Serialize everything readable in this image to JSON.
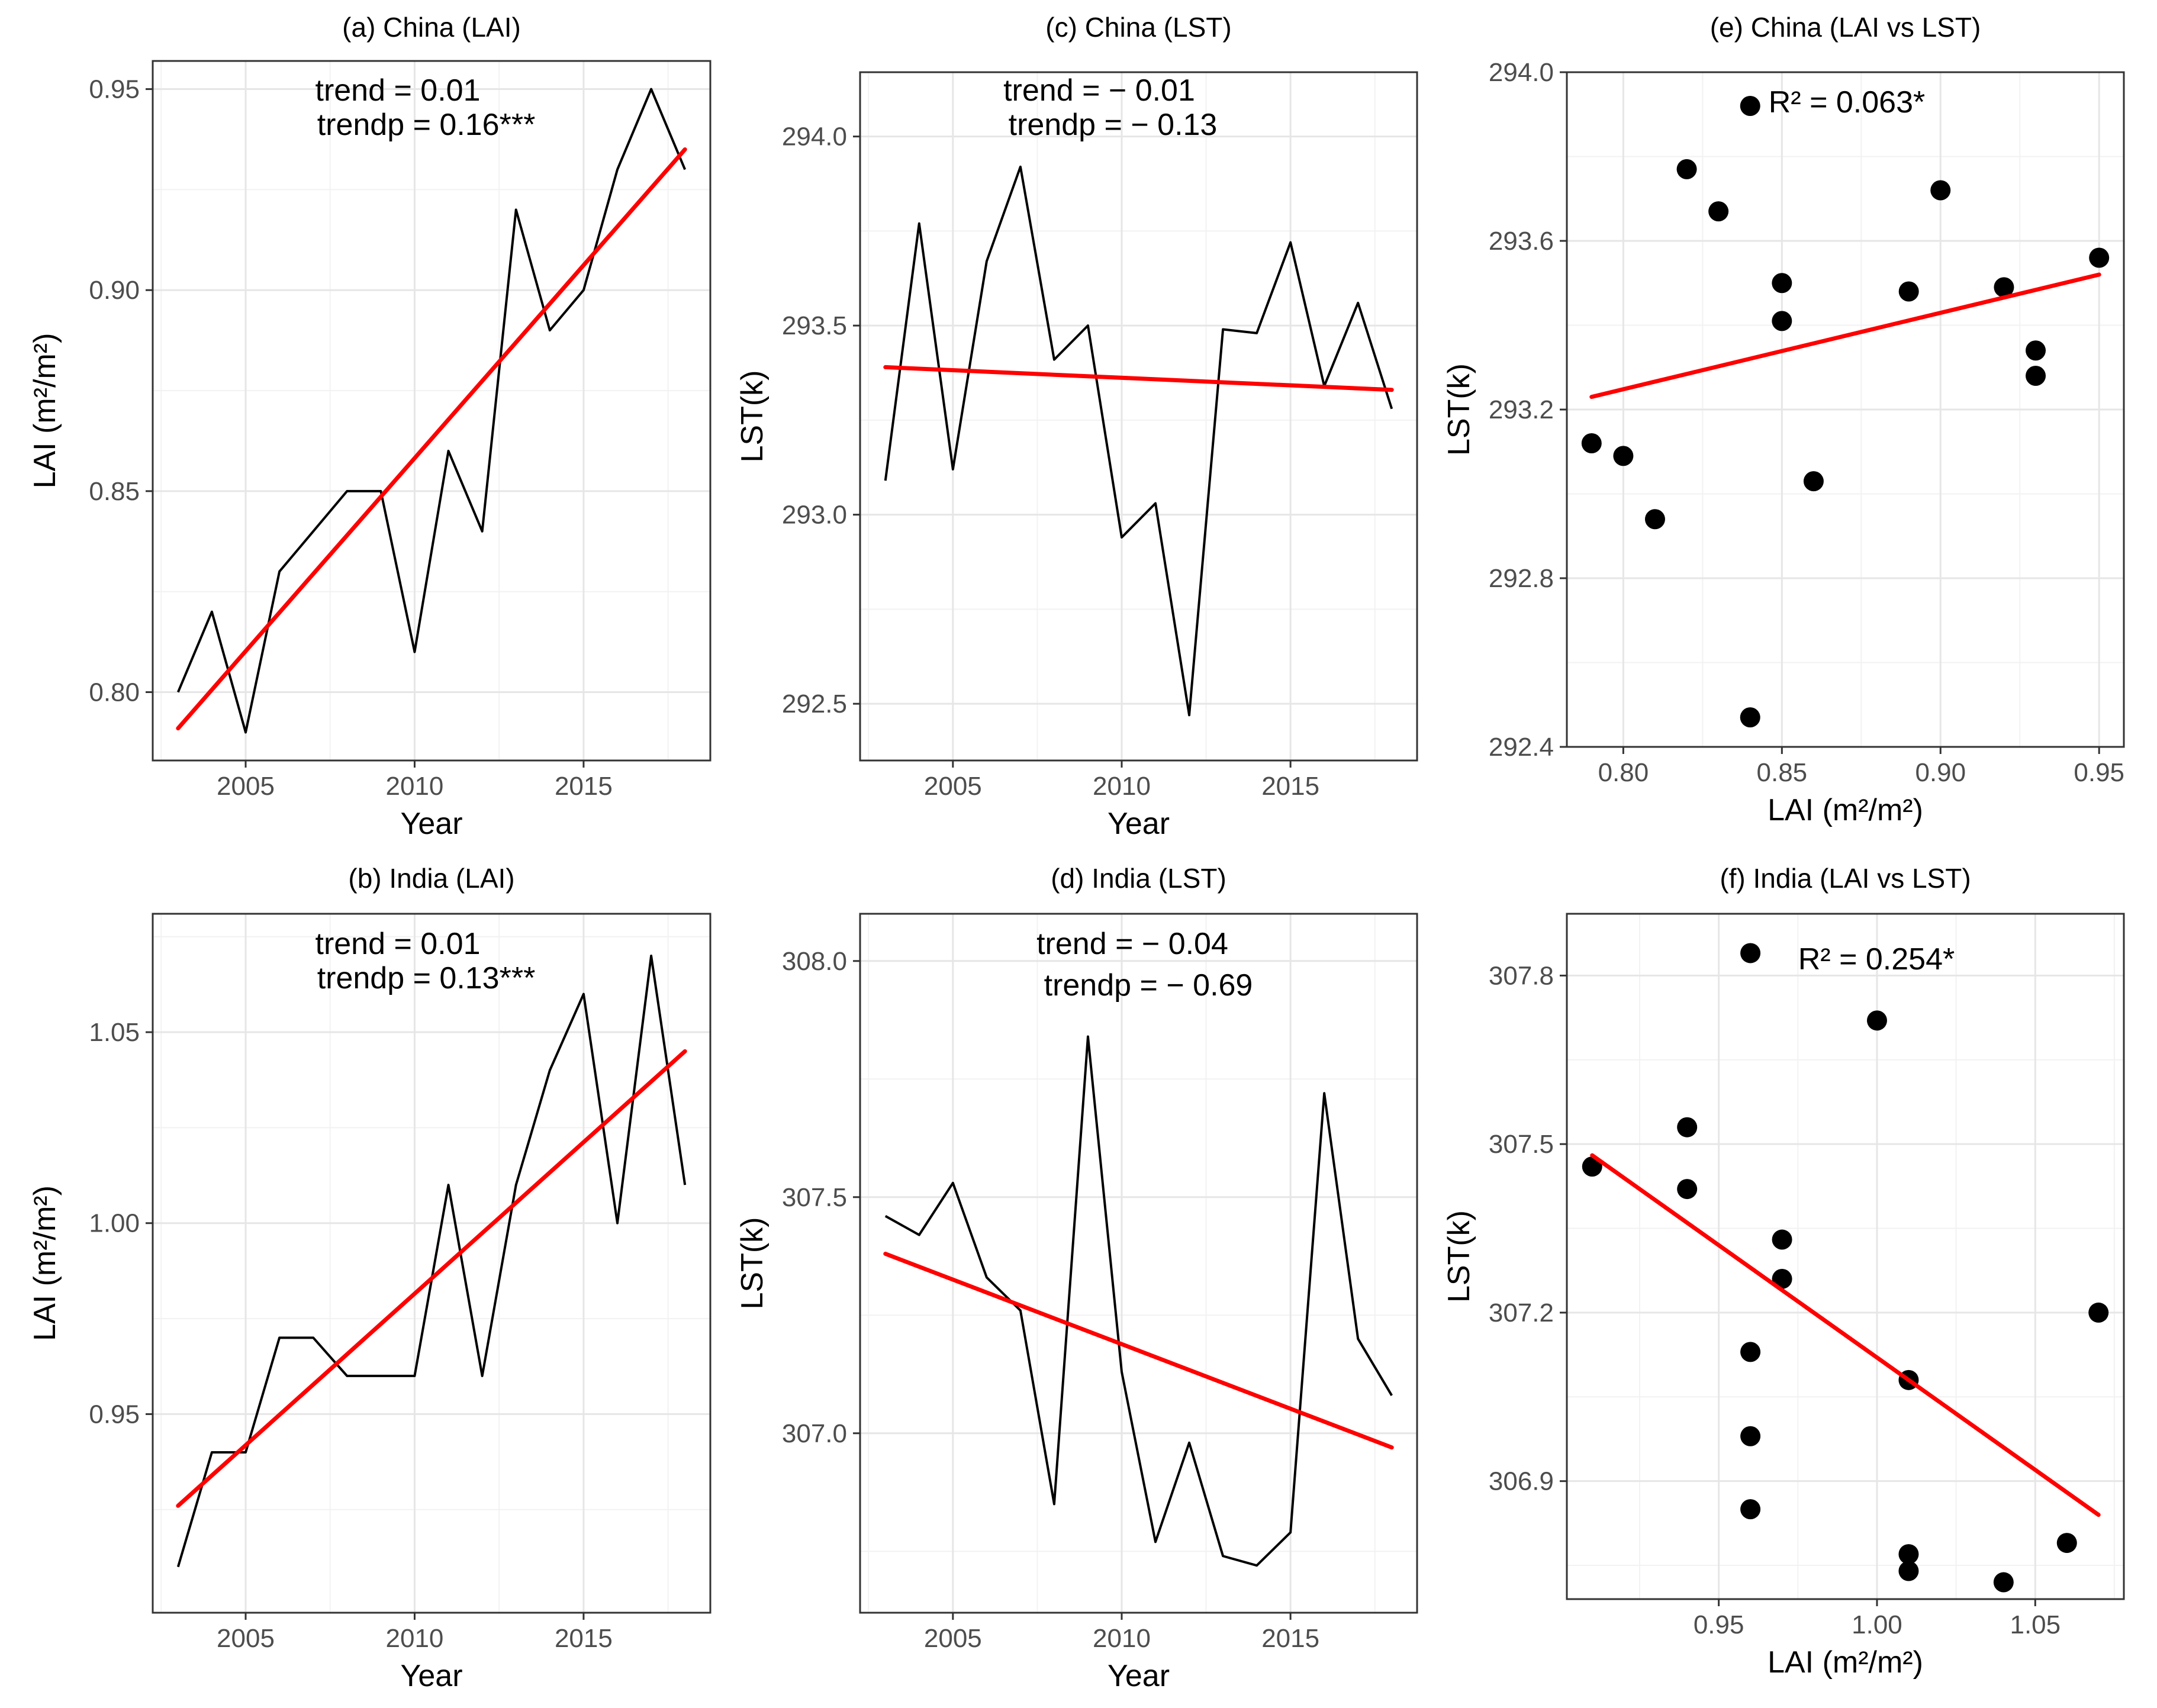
{
  "figure": {
    "background": "#ffffff",
    "trend_color": "#ff0000",
    "line_color": "#000000",
    "point_color": "#000000"
  },
  "chart_data": [
    {
      "id": "a",
      "type": "line",
      "title": "(a) China (LAI)",
      "xlabel": "Year",
      "ylabel": "LAI (m²/m²)",
      "xlim": [
        2002.25,
        2018.75
      ],
      "ylim": [
        0.783,
        0.957
      ],
      "xticks": [
        2005,
        2010,
        2015
      ],
      "xtick_labels": [
        "2005",
        "2010",
        "2015"
      ],
      "yticks": [
        0.8,
        0.85,
        0.9,
        0.95
      ],
      "ytick_labels": [
        "0.80",
        "0.85",
        "0.90",
        "0.95"
      ],
      "x": [
        2003,
        2004,
        2005,
        2006,
        2007,
        2008,
        2009,
        2010,
        2011,
        2012,
        2013,
        2014,
        2015,
        2016,
        2017,
        2018
      ],
      "series": [
        {
          "name": "LAI",
          "values": [
            0.8,
            0.82,
            0.79,
            0.83,
            0.84,
            0.85,
            0.85,
            0.81,
            0.86,
            0.84,
            0.92,
            0.89,
            0.9,
            0.93,
            0.95,
            0.93
          ]
        }
      ],
      "trend": {
        "x": [
          2003,
          2018
        ],
        "y": [
          0.791,
          0.935
        ]
      },
      "annotations": [
        "trend = 0.01",
        "trendp = 0.16***"
      ]
    },
    {
      "id": "b",
      "type": "line",
      "title": "(b) India (LAI)",
      "xlabel": "Year",
      "ylabel": "LAI (m²/m²)",
      "xlim": [
        2002.25,
        2018.75
      ],
      "ylim": [
        0.898,
        1.081
      ],
      "xticks": [
        2005,
        2010,
        2015
      ],
      "xtick_labels": [
        "2005",
        "2010",
        "2015"
      ],
      "yticks": [
        0.95,
        1.0,
        1.05
      ],
      "ytick_labels": [
        "0.95",
        "1.00",
        "1.05"
      ],
      "x": [
        2003,
        2004,
        2005,
        2006,
        2007,
        2008,
        2009,
        2010,
        2011,
        2012,
        2013,
        2014,
        2015,
        2016,
        2017,
        2018
      ],
      "series": [
        {
          "name": "LAI",
          "values": [
            0.91,
            0.94,
            0.94,
            0.97,
            0.97,
            0.96,
            0.96,
            0.96,
            1.01,
            0.96,
            1.01,
            1.04,
            1.06,
            1.0,
            1.07,
            1.01
          ]
        }
      ],
      "trend": {
        "x": [
          2003,
          2018
        ],
        "y": [
          0.926,
          1.045
        ]
      },
      "annotations": [
        "trend = 0.01",
        "trendp = 0.13***"
      ]
    },
    {
      "id": "c",
      "type": "line",
      "title": "(c) China (LST)",
      "xlabel": "Year",
      "ylabel": "LST(k)",
      "xlim": [
        2002.25,
        2018.75
      ],
      "ylim": [
        292.35,
        294.17
      ],
      "xticks": [
        2005,
        2010,
        2015
      ],
      "xtick_labels": [
        "2005",
        "2010",
        "2015"
      ],
      "yticks": [
        292.5,
        293.0,
        293.5,
        294.0
      ],
      "ytick_labels": [
        "292.5",
        "293.0",
        "293.5",
        "294.0"
      ],
      "x": [
        2003,
        2004,
        2005,
        2006,
        2007,
        2008,
        2009,
        2010,
        2011,
        2012,
        2013,
        2014,
        2015,
        2016,
        2017,
        2018
      ],
      "series": [
        {
          "name": "LST",
          "values": [
            293.09,
            293.77,
            293.12,
            293.67,
            293.92,
            293.41,
            293.5,
            292.94,
            293.03,
            292.47,
            293.49,
            293.48,
            293.72,
            293.34,
            293.56,
            293.28
          ]
        }
      ],
      "trend": {
        "x": [
          2003,
          2018
        ],
        "y": [
          293.39,
          293.33
        ]
      },
      "annotations": [
        "trend = − 0.01",
        "trendp = − 0.13"
      ]
    },
    {
      "id": "d",
      "type": "line",
      "title": "(d) India (LST)",
      "xlabel": "Year",
      "ylabel": "LST(k)",
      "xlim": [
        2002.25,
        2018.75
      ],
      "ylim": [
        306.62,
        308.1
      ],
      "xticks": [
        2005,
        2010,
        2015
      ],
      "xtick_labels": [
        "2005",
        "2010",
        "2015"
      ],
      "yticks": [
        307.0,
        307.5,
        308.0
      ],
      "ytick_labels": [
        "307.0",
        "307.5",
        "308.0"
      ],
      "x": [
        2003,
        2004,
        2005,
        2006,
        2007,
        2008,
        2009,
        2010,
        2011,
        2012,
        2013,
        2014,
        2015,
        2016,
        2017,
        2018
      ],
      "series": [
        {
          "name": "LST",
          "values": [
            307.46,
            307.42,
            307.53,
            307.33,
            307.26,
            306.85,
            307.84,
            307.13,
            306.77,
            306.98,
            306.74,
            306.72,
            306.79,
            307.72,
            307.2,
            307.08
          ]
        }
      ],
      "trend": {
        "x": [
          2003,
          2018
        ],
        "y": [
          307.38,
          306.97
        ]
      },
      "annotations": [
        "trend = − 0.04",
        "trendp = − 0.69"
      ]
    },
    {
      "id": "e",
      "type": "scatter",
      "title": "(e) China (LAI vs LST)",
      "xlabel": "LAI (m²/m²)",
      "ylabel": "LST(k)",
      "xlim": [
        0.7822,
        0.9578
      ],
      "ylim": [
        292.4,
        294.0
      ],
      "xticks": [
        0.8,
        0.85,
        0.9,
        0.95
      ],
      "xtick_labels": [
        "0.80",
        "0.85",
        "0.90",
        "0.95"
      ],
      "yticks": [
        292.4,
        292.8,
        293.2,
        293.6,
        294.0
      ],
      "ytick_labels": [
        "292.4",
        "292.8",
        "293.2",
        "293.6",
        "294.0"
      ],
      "points": [
        [
          0.79,
          293.12
        ],
        [
          0.8,
          293.09
        ],
        [
          0.81,
          292.94
        ],
        [
          0.82,
          293.77
        ],
        [
          0.83,
          293.67
        ],
        [
          0.84,
          293.92
        ],
        [
          0.84,
          292.47
        ],
        [
          0.85,
          293.5
        ],
        [
          0.85,
          293.41
        ],
        [
          0.86,
          293.03
        ],
        [
          0.89,
          293.48
        ],
        [
          0.9,
          293.72
        ],
        [
          0.92,
          293.49
        ],
        [
          0.93,
          293.34
        ],
        [
          0.93,
          293.28
        ],
        [
          0.95,
          293.56
        ]
      ],
      "trend": {
        "x": [
          0.79,
          0.95
        ],
        "y": [
          293.23,
          293.52
        ]
      },
      "annotations": [
        "R² = 0.063*"
      ]
    },
    {
      "id": "f",
      "type": "scatter",
      "title": "(f) India (LAI vs LST)",
      "xlabel": "LAI (m²/m²)",
      "ylabel": "LST(k)",
      "xlim": [
        0.902,
        1.078
      ],
      "ylim": [
        306.69,
        307.91
      ],
      "xticks": [
        0.95,
        1.0,
        1.05
      ],
      "xtick_labels": [
        "0.95",
        "1.00",
        "1.05"
      ],
      "yticks": [
        306.9,
        307.2,
        307.5,
        307.8
      ],
      "ytick_labels": [
        "306.9",
        "307.2",
        "307.5",
        "307.8"
      ],
      "points": [
        [
          0.91,
          307.46
        ],
        [
          0.94,
          307.53
        ],
        [
          0.94,
          307.42
        ],
        [
          0.96,
          307.84
        ],
        [
          0.96,
          307.13
        ],
        [
          0.96,
          306.98
        ],
        [
          0.96,
          306.85
        ],
        [
          0.97,
          307.33
        ],
        [
          0.97,
          307.26
        ],
        [
          1.0,
          307.72
        ],
        [
          1.01,
          307.08
        ],
        [
          1.01,
          306.77
        ],
        [
          1.01,
          306.74
        ],
        [
          1.04,
          306.72
        ],
        [
          1.06,
          306.79
        ],
        [
          1.07,
          307.2
        ]
      ],
      "trend": {
        "x": [
          0.91,
          1.07
        ],
        "y": [
          307.48,
          306.84
        ]
      },
      "annotations": [
        "R² = 0.254*"
      ]
    }
  ]
}
